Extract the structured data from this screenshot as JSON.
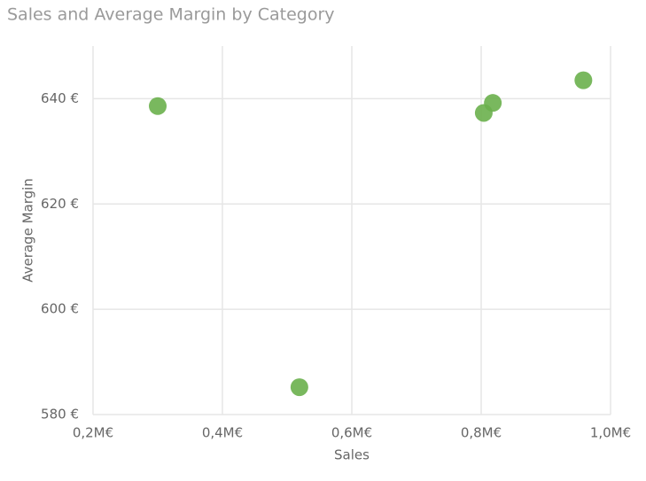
{
  "chart_data": {
    "type": "scatter",
    "title": "Sales and Average Margin by Category",
    "x_label": "Sales",
    "y_label": "Average Margin",
    "x": [
      300000,
      519000,
      804000,
      818000,
      958000
    ],
    "values": [
      638.6,
      585.2,
      637.3,
      639.2,
      643.5
    ],
    "color": "#6ab04c",
    "xlim": [
      200000,
      1000000
    ],
    "xticks": [
      {
        "value": 200000,
        "label": "0,2M€"
      },
      {
        "value": 400000,
        "label": "0,4M€"
      },
      {
        "value": 600000,
        "label": "0,6M€"
      },
      {
        "value": 800000,
        "label": "0,8M€"
      },
      {
        "value": 1000000,
        "label": "1,0M€"
      }
    ],
    "ylim": [
      580,
      650
    ],
    "yticks": [
      {
        "value": 580,
        "label": "580 €"
      },
      {
        "value": 600,
        "label": "600 €"
      },
      {
        "value": 620,
        "label": "620 €"
      },
      {
        "value": 640,
        "label": "640 €"
      }
    ],
    "grid": true
  }
}
